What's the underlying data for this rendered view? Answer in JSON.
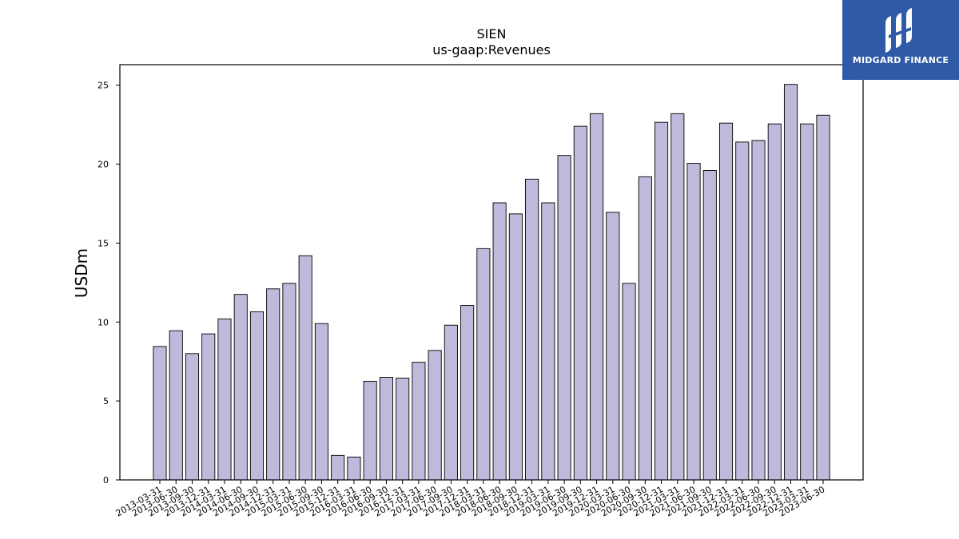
{
  "chart_data": {
    "type": "bar",
    "title": "SIEN",
    "subtitle": "us-gaap:Revenues",
    "ylabel": "USDm",
    "xlabel": "",
    "ylim": [
      0,
      26.3
    ],
    "yticks": [
      0,
      5,
      10,
      15,
      20,
      25
    ],
    "grid": false,
    "bar_color": "#bebadb",
    "categories": [
      "2013-03-31",
      "2013-06-30",
      "2013-09-30",
      "2013-12-31",
      "2014-03-31",
      "2014-06-30",
      "2014-09-30",
      "2014-12-31",
      "2015-03-31",
      "2015-06-30",
      "2015-09-30",
      "2015-12-31",
      "2016-03-31",
      "2016-06-30",
      "2016-09-30",
      "2016-12-31",
      "2017-03-31",
      "2017-06-30",
      "2017-09-30",
      "2017-12-31",
      "2018-03-31",
      "2018-06-30",
      "2018-09-30",
      "2018-12-31",
      "2019-03-31",
      "2019-06-30",
      "2019-09-30",
      "2019-12-31",
      "2020-03-31",
      "2020-06-30",
      "2020-09-30",
      "2020-12-31",
      "2021-03-31",
      "2021-06-30",
      "2021-09-30",
      "2021-12-31",
      "2022-03-31",
      "2022-06-30",
      "2022-09-30",
      "2022-12-31",
      "2023-03-31",
      "2023-06-30"
    ],
    "values": [
      8.45,
      9.45,
      8.0,
      9.25,
      10.2,
      11.75,
      10.65,
      12.1,
      12.45,
      14.2,
      9.9,
      1.55,
      1.45,
      6.25,
      6.5,
      6.45,
      7.45,
      8.2,
      9.8,
      11.05,
      14.65,
      17.55,
      16.85,
      19.05,
      17.55,
      20.55,
      22.4,
      23.2,
      16.95,
      12.45,
      19.2,
      22.65,
      23.2,
      20.05,
      19.6,
      22.6,
      21.4,
      21.5,
      22.55,
      25.05,
      22.55,
      23.1
    ]
  },
  "logo": {
    "text": "MIDGARD FINANCE",
    "colors": {
      "background": "#2f5aa8",
      "foreground": "#ffffff"
    }
  }
}
